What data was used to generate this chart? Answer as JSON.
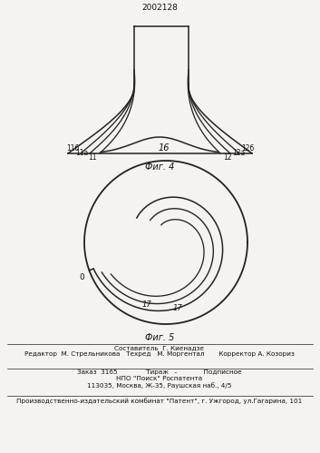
{
  "title": "2002128",
  "fig4_label": "Фиг. 4",
  "fig5_label": "Фиг. 5",
  "label_11": "11",
  "label_11a": "11а",
  "label_11b": "11б",
  "label_12": "12",
  "label_12a": "12а",
  "label_12b": "12б",
  "label_16": "16",
  "label_17a": "17",
  "label_17b": "17",
  "label_0": "0",
  "line1_sestavitel": "Составитель  Г. Киенадзе",
  "line2_editor": "Редактор  М. Стрельникова   Техред   М. Моргентал       Корректор А. Козориз",
  "line3_zakaz": "Заказ  3165              Тираж   -             Подписное",
  "line4_npo": "НПО \"Поиск\" Роспатента",
  "line5_addr": "113035, Москва, Ж-35, Раушская наб., 4/5",
  "line6_factory": "Производственно-издательский комбинат \"Патент\", г. Ужгород, ул.Гагарина, 101",
  "bg_color": "#f5f3ef",
  "line_color": "#222222",
  "text_color": "#111111"
}
